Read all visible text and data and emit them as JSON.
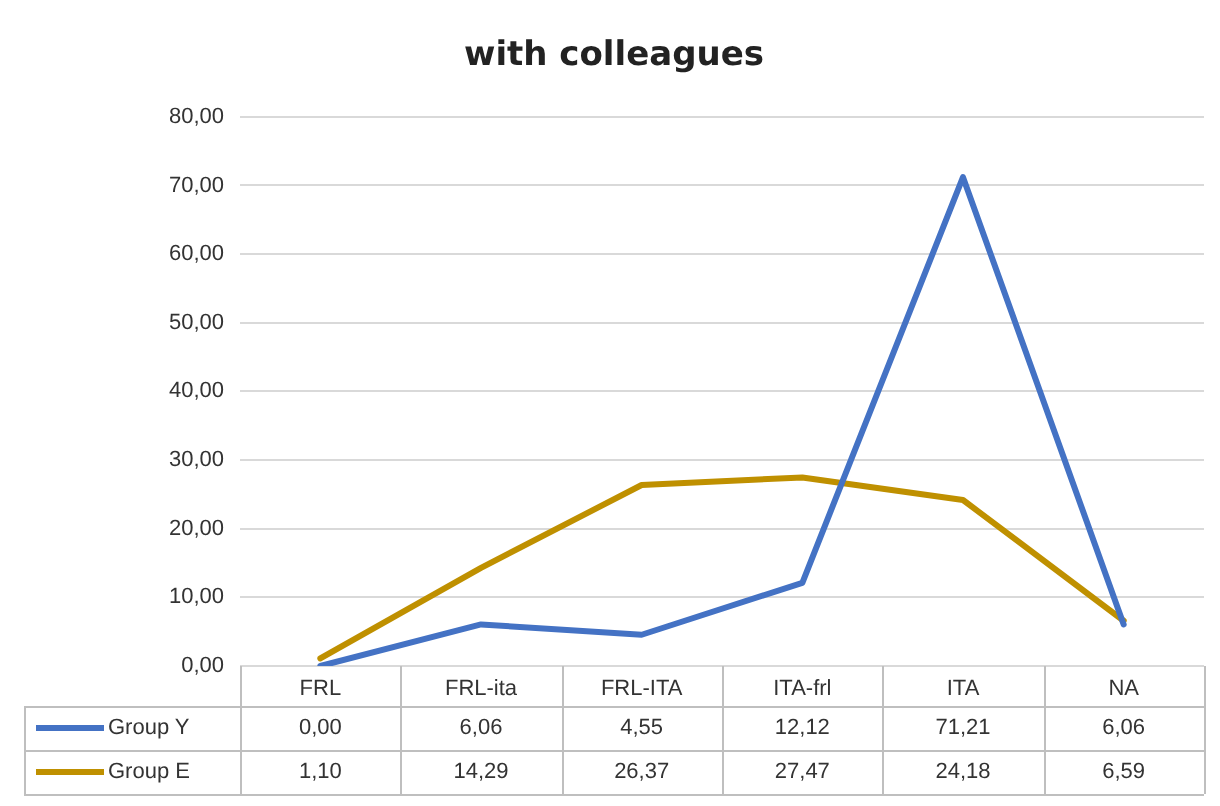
{
  "chart_data": {
    "type": "line",
    "title": "with colleagues",
    "categories": [
      "FRL",
      "FRL-ita",
      "FRL-ITA",
      "ITA-frl",
      "ITA",
      "NA"
    ],
    "series": [
      {
        "name": "Group Y",
        "color": "#4472c4",
        "values": [
          0.0,
          6.06,
          4.55,
          12.12,
          71.21,
          6.06
        ],
        "value_labels": [
          "0,00",
          "6,06",
          "4,55",
          "12,12",
          "71,21",
          "6,06"
        ]
      },
      {
        "name": "Group E",
        "color": "#bf9000",
        "values": [
          1.1,
          14.29,
          26.37,
          27.47,
          24.18,
          6.59
        ],
        "value_labels": [
          "1,10",
          "14,29",
          "26,37",
          "27,47",
          "24,18",
          "6,59"
        ]
      }
    ],
    "ylim": [
      0,
      80
    ],
    "yticks": [
      {
        "value": 0,
        "label": "0,00"
      },
      {
        "value": 10,
        "label": "10,00"
      },
      {
        "value": 20,
        "label": "20,00"
      },
      {
        "value": 30,
        "label": "30,00"
      },
      {
        "value": 40,
        "label": "40,00"
      },
      {
        "value": 50,
        "label": "50,00"
      },
      {
        "value": 60,
        "label": "60,00"
      },
      {
        "value": 70,
        "label": "70,00"
      },
      {
        "value": 80,
        "label": "80,00"
      }
    ],
    "grid": "y",
    "legend": "bottom",
    "marker": "none",
    "line_style": "solid"
  }
}
